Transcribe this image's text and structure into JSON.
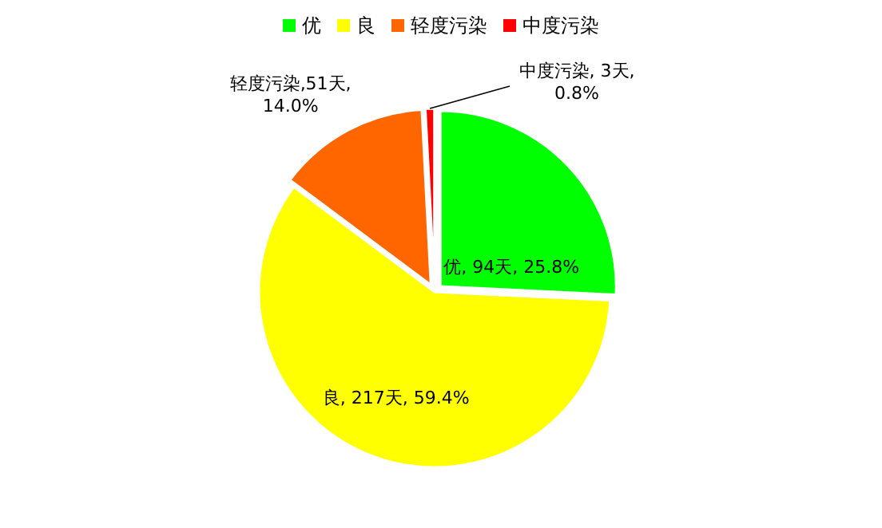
{
  "chart_data": {
    "type": "pie",
    "categories": [
      "优",
      "良",
      "轻度污染",
      "中度污染"
    ],
    "values": [
      94,
      217,
      51,
      3
    ],
    "colors": [
      "#00ff00",
      "#ffff00",
      "#ff6600",
      "#ff0000"
    ],
    "value_labels": [
      "优, 94天, 25.8%",
      "良, 217天, 59.4%",
      "轻度污染,51天, 14.0%",
      "中度污染, 3天, 0.8%"
    ],
    "legend": "top"
  }
}
